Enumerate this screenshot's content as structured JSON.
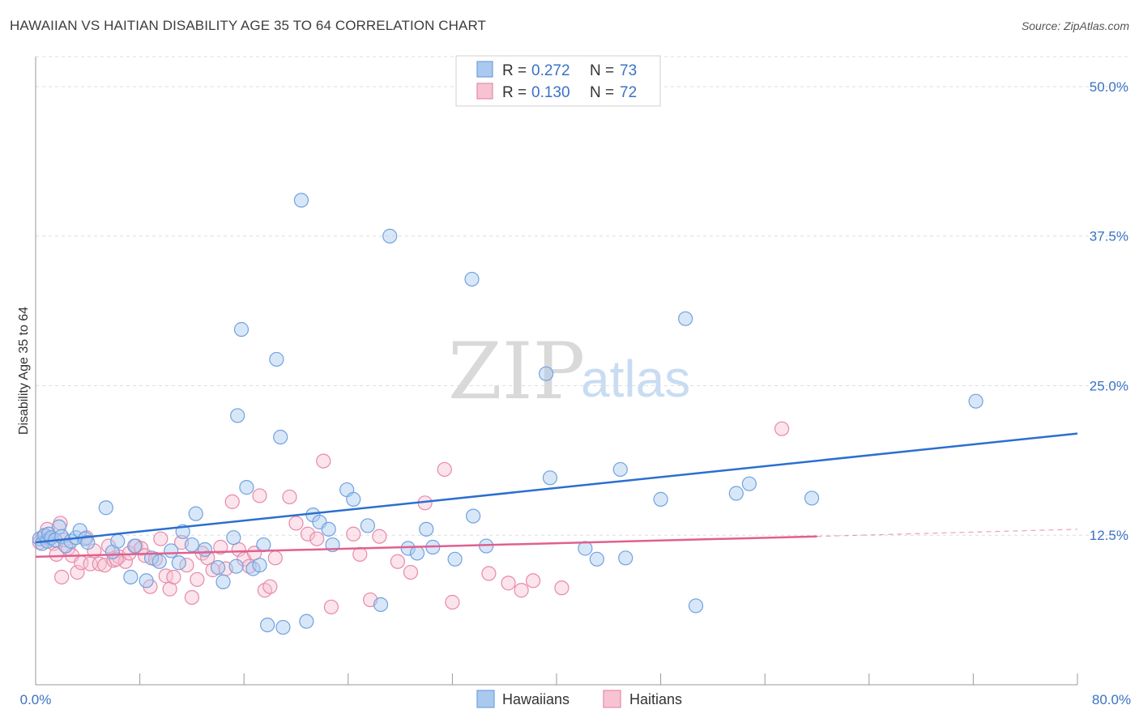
{
  "title": "HAWAIIAN VS HAITIAN DISABILITY AGE 35 TO 64 CORRELATION CHART",
  "source": "Source: ZipAtlas.com",
  "watermark": {
    "zip": "ZIP",
    "atlas": "atlas"
  },
  "colors": {
    "hawaiians": "#6fa2e0",
    "hawaiians_fill": "#a9c9ef",
    "hawaiians_line": "#2b6fcf",
    "haitians": "#e889a8",
    "haitians_fill": "#f7c3d3",
    "haitians_line": "#e0608f",
    "axis_label": "#3a72c4",
    "grid": "#dddddd"
  },
  "legend": {
    "rows": [
      {
        "r_label": "R =",
        "r_value": "0.272",
        "n_label": "N =",
        "n_value": "73"
      },
      {
        "r_label": "R =",
        "r_value": "0.130",
        "n_label": "N =",
        "n_value": "72"
      }
    ]
  },
  "bottom_legend": [
    "Hawaiians",
    "Haitians"
  ],
  "chart_data": {
    "type": "scatter",
    "title": "HAWAIIAN VS HAITIAN DISABILITY AGE 35 TO 64 CORRELATION CHART",
    "ylabel": "Disability Age 35 to 64",
    "xlabel": "",
    "xlim": [
      0,
      80
    ],
    "ylim": [
      0,
      52.5
    ],
    "x_tick_labels": [
      "0.0%",
      "80.0%"
    ],
    "y_ticks": [
      12.5,
      25.0,
      37.5,
      50.0
    ],
    "y_tick_labels": [
      "12.5%",
      "25.0%",
      "37.5%",
      "50.0%"
    ],
    "grid": "horizontal dashed",
    "series": [
      {
        "name": "Hawaiians",
        "r": 0.272,
        "n": 73,
        "trend": {
          "x": [
            0,
            80
          ],
          "y": [
            11.9,
            21.0
          ]
        },
        "points": [
          [
            0.3,
            12.2
          ],
          [
            0.5,
            11.8
          ],
          [
            0.7,
            12.5
          ],
          [
            0.9,
            12.0
          ],
          [
            1.0,
            12.6
          ],
          [
            1.2,
            12.3
          ],
          [
            1.5,
            12.1
          ],
          [
            1.8,
            13.2
          ],
          [
            2.0,
            12.4
          ],
          [
            2.3,
            11.6
          ],
          [
            2.7,
            12.0
          ],
          [
            3.1,
            12.3
          ],
          [
            3.4,
            12.9
          ],
          [
            3.8,
            12.2
          ],
          [
            4.0,
            11.9
          ],
          [
            5.4,
            14.8
          ],
          [
            5.9,
            11.1
          ],
          [
            6.3,
            12.0
          ],
          [
            7.3,
            9.0
          ],
          [
            7.6,
            11.6
          ],
          [
            8.5,
            8.7
          ],
          [
            8.9,
            10.6
          ],
          [
            9.5,
            10.3
          ],
          [
            10.4,
            11.2
          ],
          [
            11.0,
            10.2
          ],
          [
            11.3,
            12.8
          ],
          [
            12.0,
            11.7
          ],
          [
            12.3,
            14.3
          ],
          [
            13.0,
            11.3
          ],
          [
            14.0,
            9.8
          ],
          [
            14.4,
            8.6
          ],
          [
            15.2,
            12.3
          ],
          [
            15.4,
            9.9
          ],
          [
            15.8,
            29.7
          ],
          [
            16.2,
            16.5
          ],
          [
            16.7,
            9.7
          ],
          [
            17.2,
            10.0
          ],
          [
            17.5,
            11.7
          ],
          [
            17.8,
            5.0
          ],
          [
            18.5,
            27.2
          ],
          [
            18.8,
            20.7
          ],
          [
            19.0,
            4.8
          ],
          [
            20.8,
            5.3
          ],
          [
            21.3,
            14.2
          ],
          [
            21.8,
            13.6
          ],
          [
            22.5,
            13.0
          ],
          [
            22.8,
            11.7
          ],
          [
            23.9,
            16.3
          ],
          [
            24.4,
            15.5
          ],
          [
            25.5,
            13.3
          ],
          [
            26.5,
            6.7
          ],
          [
            28.6,
            11.4
          ],
          [
            29.3,
            11.0
          ],
          [
            30.0,
            13.0
          ],
          [
            30.5,
            11.5
          ],
          [
            32.2,
            10.5
          ],
          [
            33.6,
            14.1
          ],
          [
            34.6,
            11.6
          ],
          [
            39.5,
            17.3
          ],
          [
            42.2,
            11.4
          ],
          [
            43.1,
            10.5
          ],
          [
            44.9,
            18.0
          ],
          [
            45.3,
            10.6
          ],
          [
            48.0,
            15.5
          ],
          [
            49.9,
            30.6
          ],
          [
            50.7,
            6.6
          ],
          [
            53.8,
            16.0
          ],
          [
            54.8,
            16.8
          ],
          [
            59.6,
            15.6
          ],
          [
            72.2,
            23.7
          ],
          [
            20.4,
            40.5
          ],
          [
            27.2,
            37.5
          ],
          [
            33.5,
            33.9
          ],
          [
            39.2,
            26.0
          ],
          [
            15.5,
            22.5
          ]
        ]
      },
      {
        "name": "Haitians",
        "r": 0.13,
        "n": 72,
        "trend": {
          "x": [
            0,
            60
          ],
          "y": [
            10.7,
            12.4
          ]
        },
        "trend_dashed_extension": {
          "x": [
            60,
            80
          ],
          "y": [
            12.4,
            13.0
          ]
        },
        "points": [
          [
            0.3,
            11.9
          ],
          [
            0.6,
            12.4
          ],
          [
            0.9,
            13.0
          ],
          [
            1.1,
            12.2
          ],
          [
            1.4,
            11.8
          ],
          [
            1.6,
            10.9
          ],
          [
            1.9,
            13.5
          ],
          [
            2.2,
            12.1
          ],
          [
            2.5,
            11.4
          ],
          [
            2.8,
            10.8
          ],
          [
            3.2,
            9.4
          ],
          [
            3.5,
            10.2
          ],
          [
            3.9,
            12.3
          ],
          [
            4.2,
            10.1
          ],
          [
            4.5,
            11.2
          ],
          [
            4.9,
            10.1
          ],
          [
            5.3,
            10.0
          ],
          [
            5.6,
            11.6
          ],
          [
            6.0,
            10.4
          ],
          [
            6.4,
            10.7
          ],
          [
            6.9,
            10.3
          ],
          [
            7.2,
            11.0
          ],
          [
            7.7,
            11.6
          ],
          [
            8.1,
            11.4
          ],
          [
            8.4,
            10.8
          ],
          [
            8.8,
            8.2
          ],
          [
            9.2,
            10.5
          ],
          [
            9.6,
            12.2
          ],
          [
            10.0,
            9.1
          ],
          [
            10.3,
            8.0
          ],
          [
            10.6,
            9.0
          ],
          [
            11.2,
            11.9
          ],
          [
            11.6,
            10.0
          ],
          [
            12.0,
            7.3
          ],
          [
            12.4,
            8.8
          ],
          [
            12.8,
            11.0
          ],
          [
            13.2,
            10.6
          ],
          [
            13.6,
            9.6
          ],
          [
            14.2,
            11.5
          ],
          [
            14.6,
            9.7
          ],
          [
            15.1,
            15.3
          ],
          [
            15.6,
            11.3
          ],
          [
            16.0,
            10.5
          ],
          [
            16.4,
            9.9
          ],
          [
            16.8,
            11.0
          ],
          [
            17.2,
            15.8
          ],
          [
            17.6,
            7.9
          ],
          [
            18.0,
            8.2
          ],
          [
            18.4,
            10.6
          ],
          [
            19.5,
            15.7
          ],
          [
            20.0,
            13.5
          ],
          [
            20.9,
            12.6
          ],
          [
            21.6,
            12.2
          ],
          [
            22.1,
            18.7
          ],
          [
            22.7,
            6.5
          ],
          [
            24.4,
            12.6
          ],
          [
            24.9,
            10.9
          ],
          [
            25.7,
            7.1
          ],
          [
            26.4,
            12.4
          ],
          [
            27.8,
            10.3
          ],
          [
            28.8,
            9.4
          ],
          [
            29.9,
            15.2
          ],
          [
            31.4,
            18.0
          ],
          [
            32.0,
            6.9
          ],
          [
            34.8,
            9.3
          ],
          [
            36.3,
            8.5
          ],
          [
            37.3,
            7.9
          ],
          [
            38.2,
            8.7
          ],
          [
            40.4,
            8.1
          ],
          [
            57.3,
            21.4
          ],
          [
            6.2,
            10.5
          ],
          [
            2.0,
            9.0
          ]
        ]
      }
    ]
  }
}
